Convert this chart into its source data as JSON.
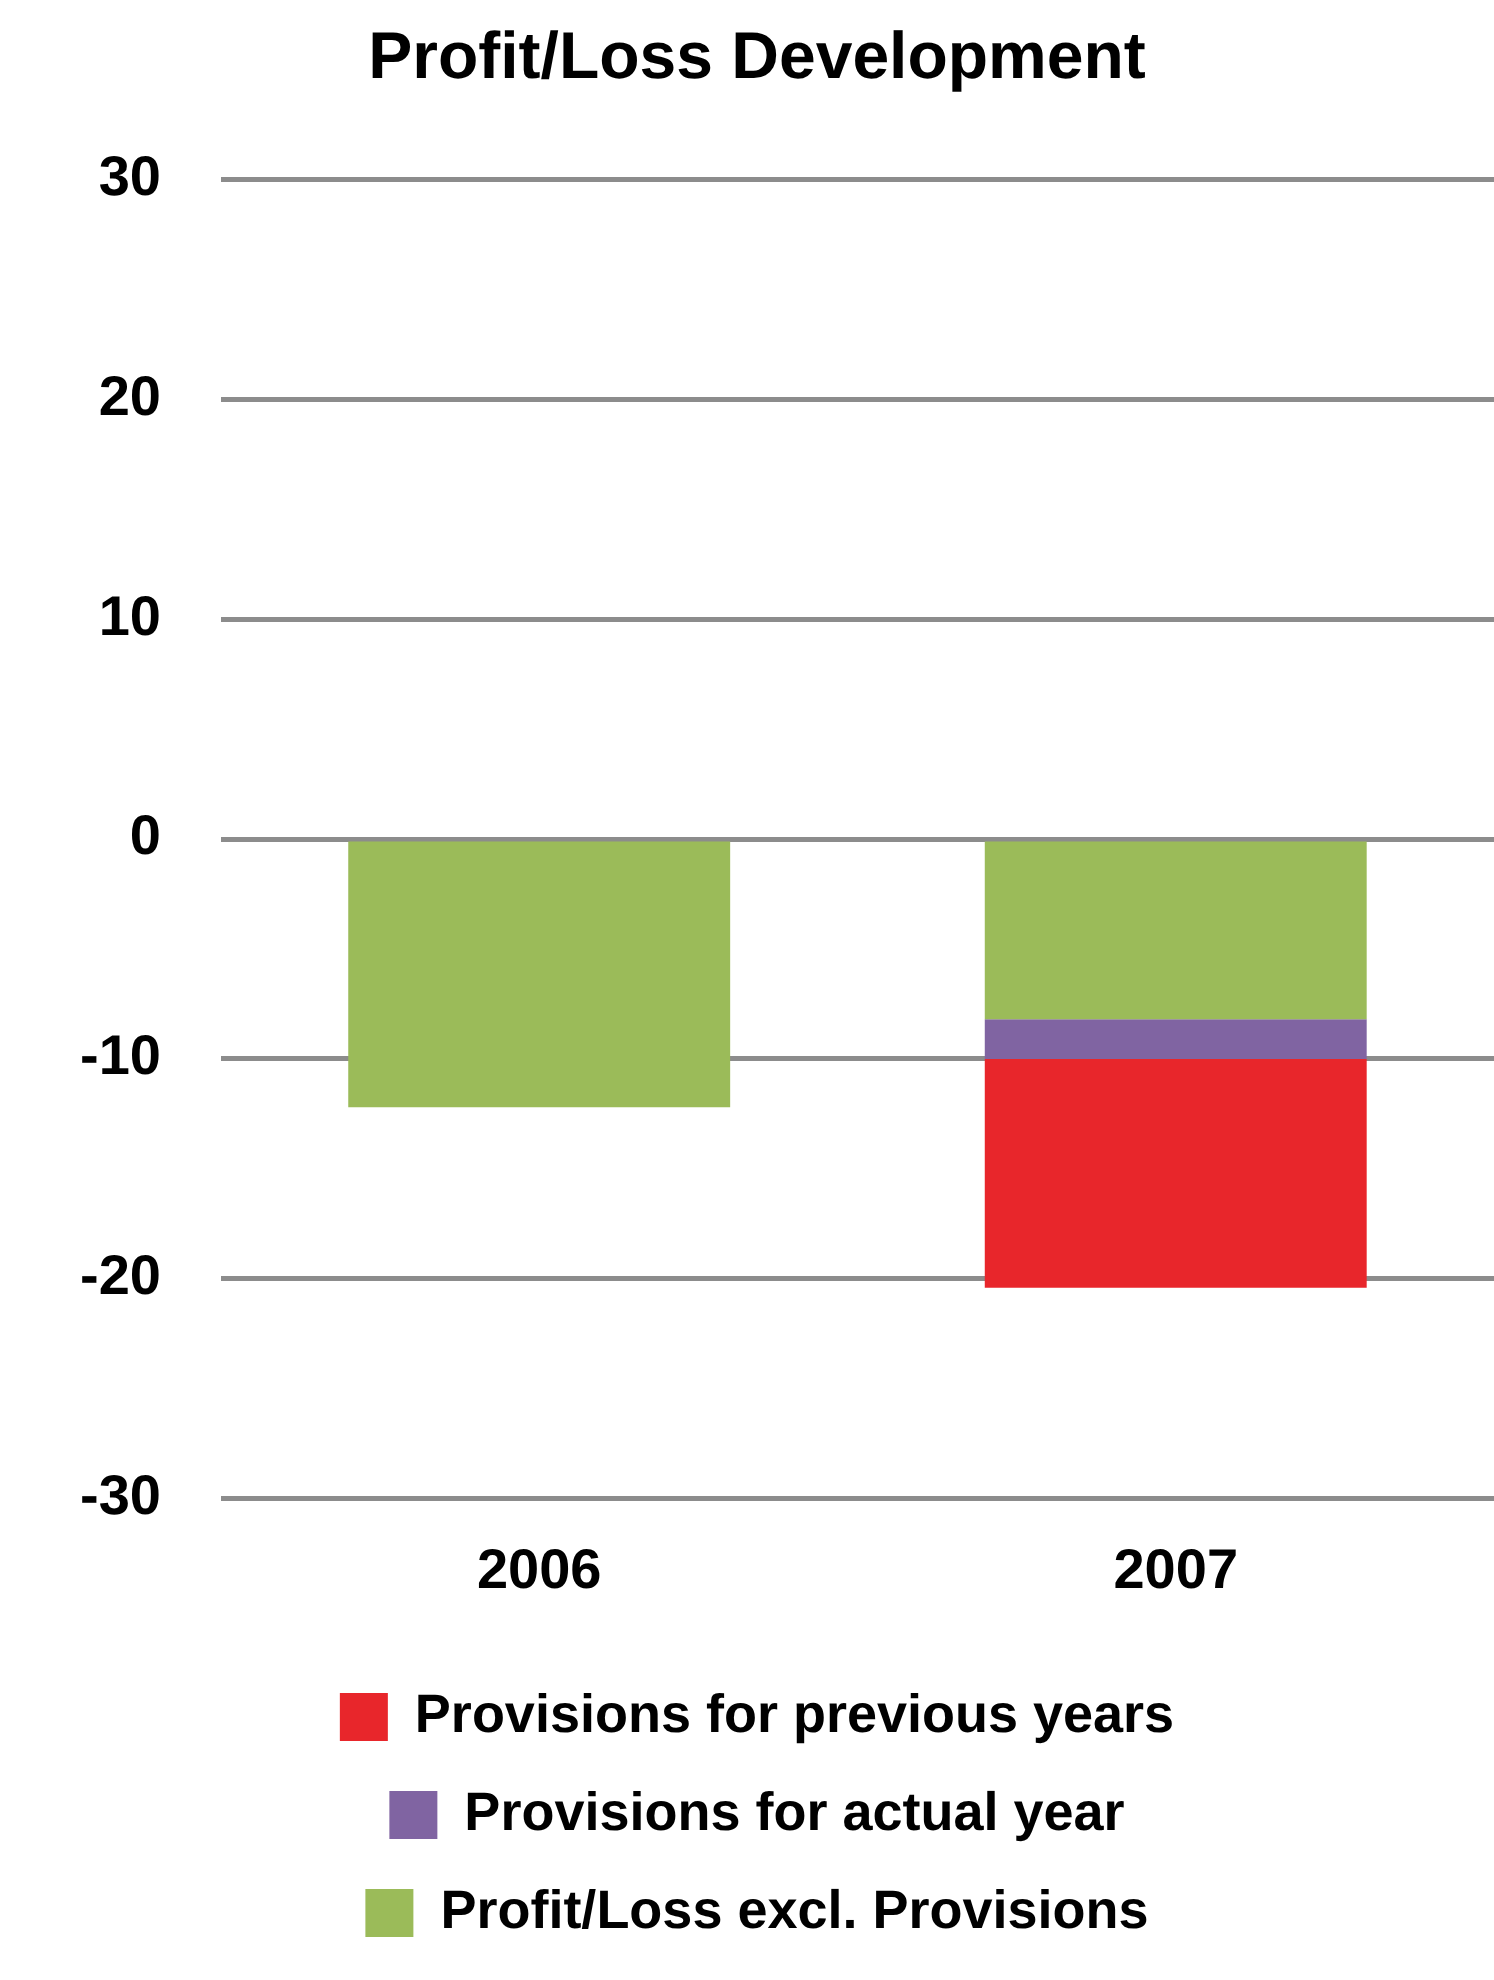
{
  "chart_data": {
    "type": "bar",
    "title": "Profit/Loss Development",
    "categories": [
      "2006",
      "2007"
    ],
    "stacked": true,
    "series": [
      {
        "name": "Profit/Loss excl. Provisions",
        "color": "#9bbb59",
        "values": [
          -12.2,
          -8.2
        ]
      },
      {
        "name": "Provisions for actual year",
        "color": "#8064a2",
        "values": [
          null,
          -1.8
        ]
      },
      {
        "name": "Provisions for previous years",
        "color": "#e8262b",
        "values": [
          null,
          -10.4
        ]
      }
    ],
    "ylim": [
      -30,
      30
    ],
    "yticks": [
      -30,
      -20,
      -10,
      0,
      10,
      20,
      30
    ],
    "grid": "y",
    "legend": "bottom"
  }
}
